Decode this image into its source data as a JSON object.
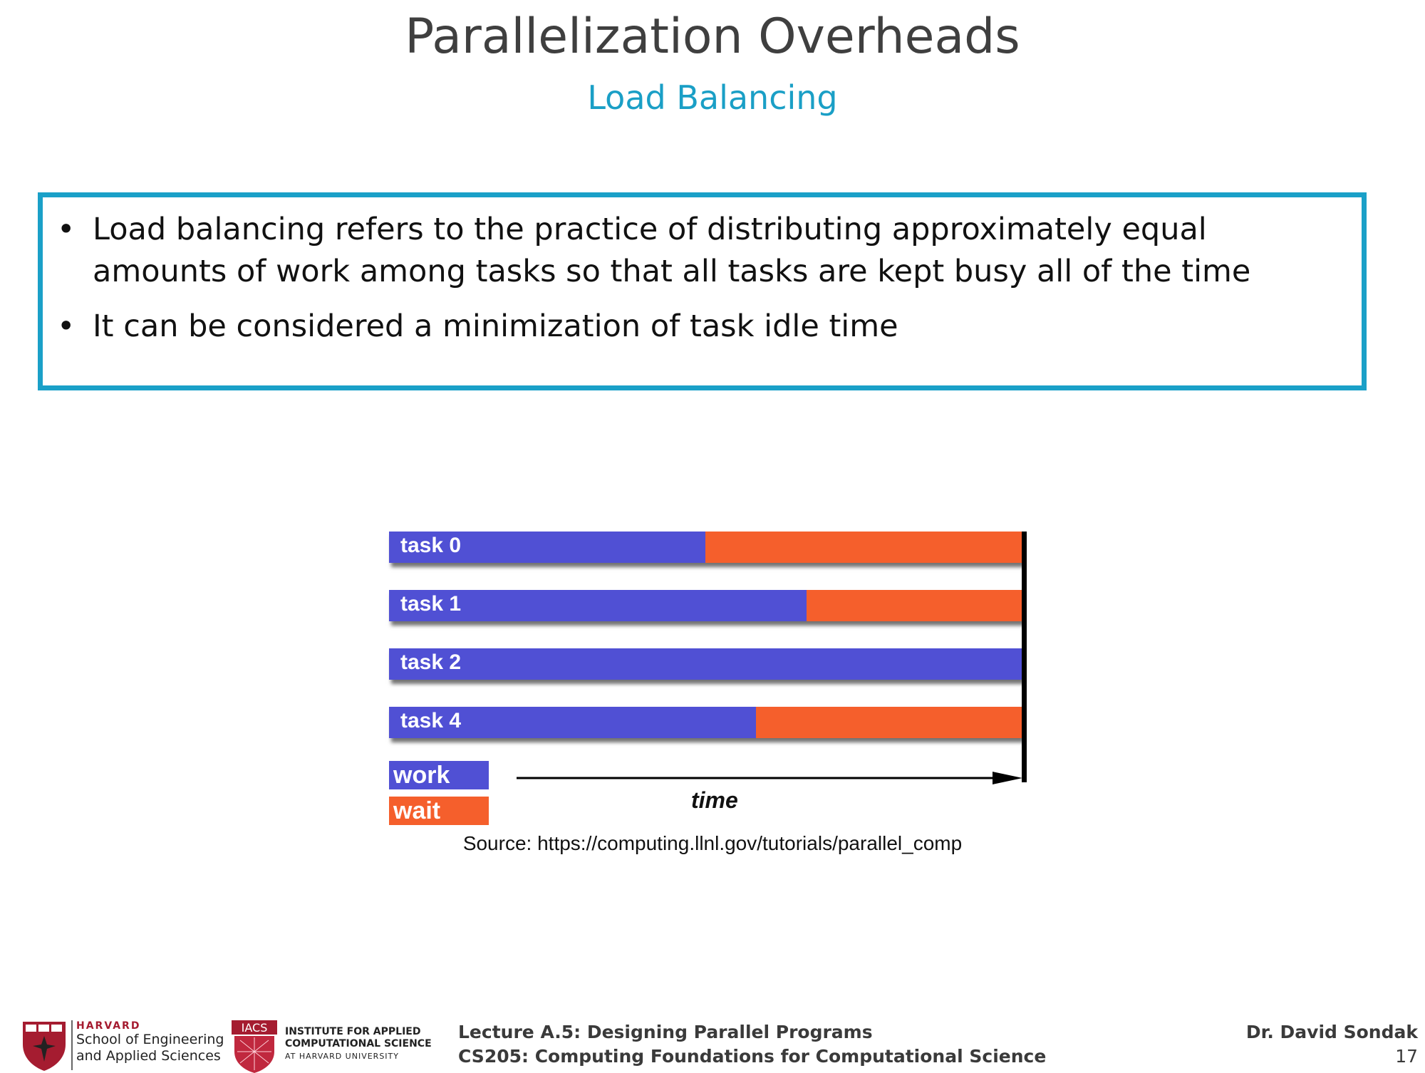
{
  "slide": {
    "title": "Parallelization Overheads",
    "subtitle": "Load Balancing",
    "bullets": [
      "Load balancing refers to the practice of distributing approximately equal amounts of work among tasks so that all tasks are kept busy all of the time",
      "It can be considered a minimization of task idle time"
    ],
    "bullet_symbol": "•",
    "source": "Source: https://computing.llnl.gov/tutorials/parallel_comp"
  },
  "figure": {
    "type": "bar",
    "categories": [
      "task 0",
      "task 1",
      "task 2",
      "task 4"
    ],
    "series": [
      {
        "name": "work",
        "values": [
          0.5,
          0.66,
          1.0,
          0.58
        ],
        "color": "#5050d4"
      },
      {
        "name": "wait",
        "values": [
          0.5,
          0.34,
          0.0,
          0.42
        ],
        "color": "#f55f2c"
      }
    ],
    "xlabel": "time",
    "stacked": true
  },
  "footer": {
    "harvard": "HARVARD",
    "seas_line1": "School of Engineering",
    "seas_line2": "and Applied Sciences",
    "iacs_badge": "IACS",
    "iacs_line1": "INSTITUTE FOR APPLIED",
    "iacs_line2": "COMPUTATIONAL SCIENCE",
    "iacs_line3": "AT HARVARD UNIVERSITY",
    "lecture": "Lecture A.5: Designing Parallel Programs",
    "course": "CS205: Computing Foundations for Computational Science",
    "author": "Dr. David Sondak",
    "page": "17"
  }
}
